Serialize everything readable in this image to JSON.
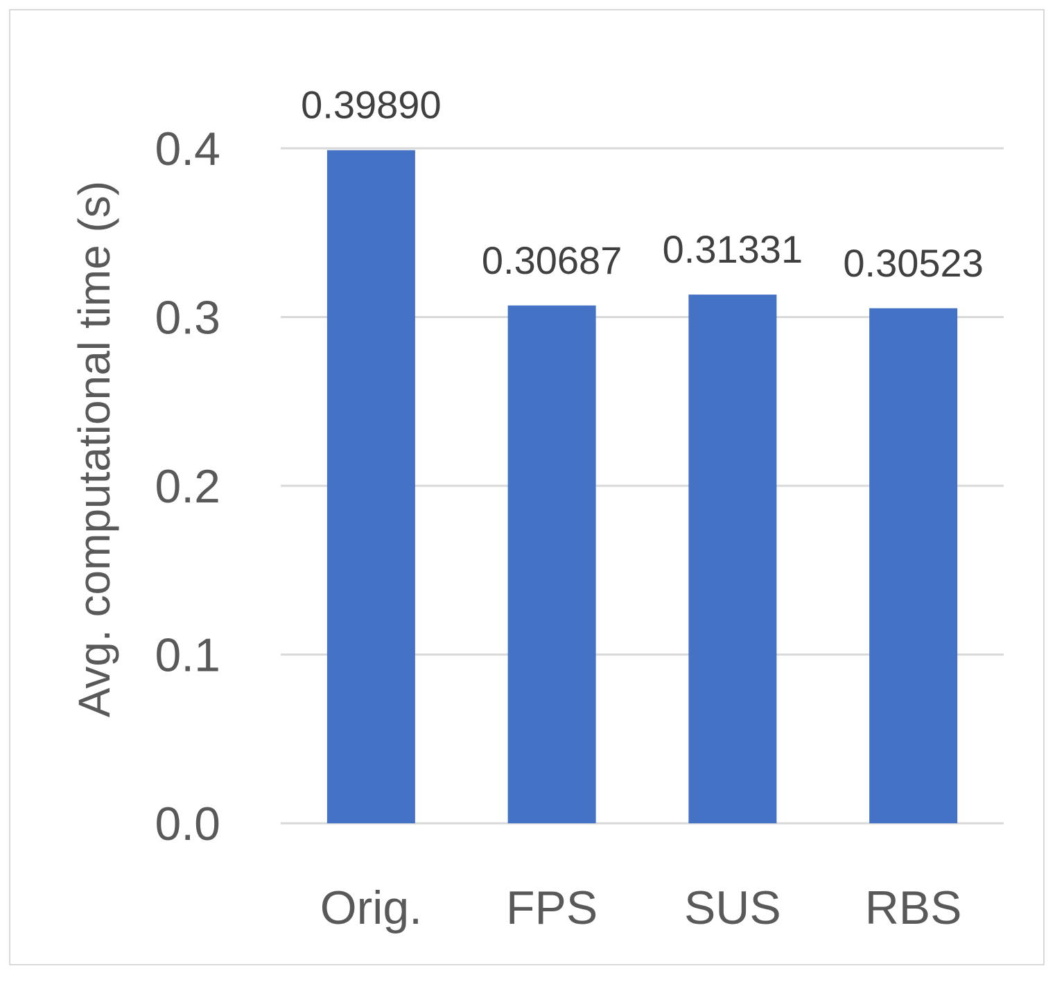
{
  "chart_data": {
    "type": "bar",
    "categories": [
      "Orig.",
      "FPS",
      "SUS",
      "RBS"
    ],
    "values": [
      0.3989,
      0.30687,
      0.31331,
      0.30523
    ],
    "data_labels": [
      "0.39890",
      "0.30687",
      "0.31331",
      "0.30523"
    ],
    "title": "",
    "xlabel": "",
    "ylabel": "Avg. computational time (s)",
    "ylim": [
      0,
      0.4
    ],
    "yticks": [
      0.0,
      0.1,
      0.2,
      0.3,
      0.4
    ],
    "ytick_labels": [
      "0.0",
      "0.1",
      "0.2",
      "0.3",
      "0.4"
    ],
    "grid": true,
    "bar_color": "#4472c4",
    "grid_color": "#d9d9d9"
  }
}
